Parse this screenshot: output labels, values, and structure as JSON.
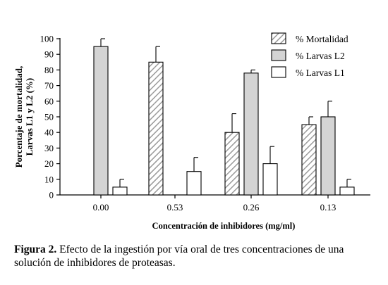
{
  "chart_data": {
    "type": "bar",
    "categories": [
      "0.00",
      "0.53",
      "0.26",
      "0.13"
    ],
    "series": [
      {
        "name": "% Mortalidad",
        "values": [
          0,
          85,
          40,
          45
        ],
        "errors": [
          0,
          10,
          12,
          5
        ],
        "fill": "hatched"
      },
      {
        "name": "% Larvas L2",
        "values": [
          95,
          0,
          78,
          50
        ],
        "errors": [
          5,
          0,
          2,
          10
        ],
        "fill": "#d4d4d4"
      },
      {
        "name": "% Larvas L1",
        "values": [
          5,
          15,
          20,
          5
        ],
        "errors": [
          5,
          9,
          11,
          5
        ],
        "fill": "#ffffff"
      }
    ],
    "xlabel": "Concentración de inhibidores (mg/ml)",
    "ylabel_lines": [
      "Porcentaje de mortalidad,",
      "Larvas L1 y L2 (%)"
    ],
    "ylim": [
      0,
      100
    ],
    "yticks": [
      0,
      10,
      20,
      30,
      40,
      50,
      60,
      70,
      80,
      90,
      100
    ],
    "grid": false,
    "legend": "top-right"
  },
  "caption": {
    "label": "Figura 2.",
    "text": " Efecto de la ingestión por vía oral de tres concentraciones de una solución de inhibidores de proteasas."
  }
}
